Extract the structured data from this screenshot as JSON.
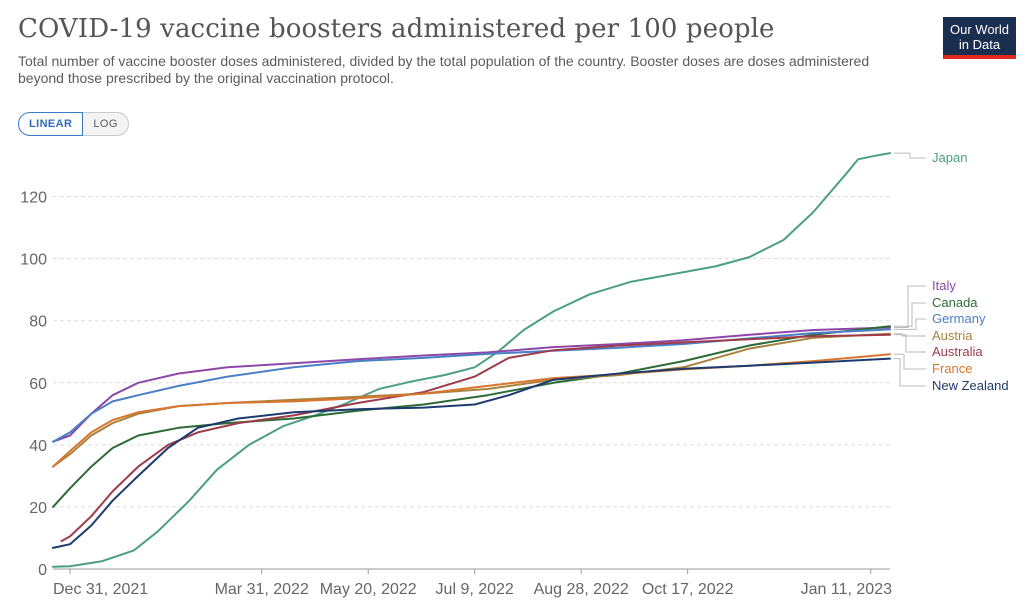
{
  "header": {
    "title": "COVID-19 vaccine boosters administered per 100 people",
    "subtitle": "Total number of vaccine booster doses administered, divided by the total population of the country. Booster doses are doses administered beyond those prescribed by the original vaccination protocol."
  },
  "logo": {
    "line1": "Our World",
    "line2": "in Data"
  },
  "scale_toggle": {
    "linear_label": "LINEAR",
    "log_label": "LOG",
    "selected": "LINEAR"
  },
  "chart_data": {
    "type": "line",
    "title": "COVID-19 vaccine boosters administered per 100 people",
    "xlabel": "",
    "ylabel": "",
    "x_range": [
      "2021-12-23",
      "2023-01-20"
    ],
    "ylim": [
      0,
      135
    ],
    "y_ticks": [
      0,
      20,
      40,
      60,
      80,
      100,
      120
    ],
    "x_ticks": [
      {
        "date": "2021-12-31",
        "label": "Dec 31, 2021"
      },
      {
        "date": "2022-03-31",
        "label": "Mar 31, 2022"
      },
      {
        "date": "2022-05-20",
        "label": "May 20, 2022"
      },
      {
        "date": "2022-07-09",
        "label": "Jul 9, 2022"
      },
      {
        "date": "2022-08-28",
        "label": "Aug 28, 2022"
      },
      {
        "date": "2022-10-17",
        "label": "Oct 17, 2022"
      },
      {
        "date": "2023-01-11",
        "label": "Jan 11, 2023"
      }
    ],
    "grid": "horizontal",
    "legend": "right",
    "series": [
      {
        "name": "Japan",
        "color": "#4c9f7f",
        "points": [
          [
            "2021-12-23",
            0.7
          ],
          [
            "2021-12-31",
            0.9
          ],
          [
            "2022-01-15",
            2.5
          ],
          [
            "2022-01-30",
            6
          ],
          [
            "2022-02-10",
            12
          ],
          [
            "2022-02-25",
            22
          ],
          [
            "2022-03-10",
            32
          ],
          [
            "2022-03-25",
            40
          ],
          [
            "2022-04-10",
            46
          ],
          [
            "2022-04-25",
            49.5
          ],
          [
            "2022-05-10",
            53.5
          ],
          [
            "2022-05-25",
            58
          ],
          [
            "2022-06-10",
            60.5
          ],
          [
            "2022-06-25",
            62.5
          ],
          [
            "2022-07-09",
            65
          ],
          [
            "2022-07-20",
            70
          ],
          [
            "2022-08-01",
            77
          ],
          [
            "2022-08-15",
            83
          ],
          [
            "2022-09-01",
            88.5
          ],
          [
            "2022-09-20",
            92.5
          ],
          [
            "2022-10-10",
            95
          ],
          [
            "2022-10-30",
            97.5
          ],
          [
            "2022-11-15",
            100.5
          ],
          [
            "2022-12-01",
            106
          ],
          [
            "2022-12-15",
            115
          ],
          [
            "2022-12-30",
            127
          ],
          [
            "2023-01-05",
            132
          ],
          [
            "2023-01-12",
            133
          ],
          [
            "2023-01-20",
            134
          ]
        ]
      },
      {
        "name": "Italy",
        "color": "#8e48a8",
        "points": [
          [
            "2021-12-23",
            41
          ],
          [
            "2021-12-31",
            43
          ],
          [
            "2022-01-10",
            50
          ],
          [
            "2022-01-20",
            56
          ],
          [
            "2022-02-01",
            60
          ],
          [
            "2022-02-20",
            63
          ],
          [
            "2022-03-15",
            65
          ],
          [
            "2022-04-15",
            66.3
          ],
          [
            "2022-05-15",
            67.6
          ],
          [
            "2022-06-15",
            68.8
          ],
          [
            "2022-07-15",
            69.8
          ],
          [
            "2022-08-15",
            71.5
          ],
          [
            "2022-09-15",
            72.5
          ],
          [
            "2022-10-15",
            73.7
          ],
          [
            "2022-11-15",
            75.5
          ],
          [
            "2022-12-15",
            77
          ],
          [
            "2023-01-20",
            77.8
          ]
        ]
      },
      {
        "name": "Canada",
        "color": "#2e6a36",
        "points": [
          [
            "2021-12-23",
            20
          ],
          [
            "2021-12-31",
            26
          ],
          [
            "2022-01-10",
            33
          ],
          [
            "2022-01-20",
            39
          ],
          [
            "2022-02-01",
            43
          ],
          [
            "2022-02-20",
            45.5
          ],
          [
            "2022-03-15",
            47
          ],
          [
            "2022-04-15",
            48.5
          ],
          [
            "2022-05-15",
            51
          ],
          [
            "2022-06-15",
            53
          ],
          [
            "2022-07-15",
            56
          ],
          [
            "2022-08-15",
            60
          ],
          [
            "2022-09-15",
            63
          ],
          [
            "2022-10-15",
            67
          ],
          [
            "2022-11-15",
            72
          ],
          [
            "2022-12-15",
            75.5
          ],
          [
            "2023-01-20",
            78.2
          ]
        ]
      },
      {
        "name": "Germany",
        "color": "#4b7fc6",
        "points": [
          [
            "2021-12-23",
            41
          ],
          [
            "2021-12-31",
            44
          ],
          [
            "2022-01-10",
            50
          ],
          [
            "2022-01-20",
            54
          ],
          [
            "2022-02-01",
            56
          ],
          [
            "2022-02-20",
            59
          ],
          [
            "2022-03-15",
            62
          ],
          [
            "2022-04-15",
            65
          ],
          [
            "2022-05-15",
            67
          ],
          [
            "2022-06-15",
            68
          ],
          [
            "2022-07-15",
            69.3
          ],
          [
            "2022-08-15",
            70.3
          ],
          [
            "2022-09-15",
            71.3
          ],
          [
            "2022-10-15",
            72.5
          ],
          [
            "2022-11-15",
            74.3
          ],
          [
            "2022-12-15",
            76
          ],
          [
            "2023-01-20",
            77.2
          ]
        ]
      },
      {
        "name": "Austria",
        "color": "#a8833f",
        "points": [
          [
            "2021-12-23",
            33
          ],
          [
            "2021-12-31",
            37
          ],
          [
            "2022-01-10",
            43
          ],
          [
            "2022-01-20",
            47
          ],
          [
            "2022-02-01",
            50
          ],
          [
            "2022-02-20",
            52.5
          ],
          [
            "2022-03-15",
            53.5
          ],
          [
            "2022-04-15",
            54.5
          ],
          [
            "2022-05-15",
            55.5
          ],
          [
            "2022-06-15",
            56.5
          ],
          [
            "2022-07-15",
            58
          ],
          [
            "2022-08-15",
            61
          ],
          [
            "2022-09-15",
            62.5
          ],
          [
            "2022-10-15",
            65
          ],
          [
            "2022-11-15",
            71
          ],
          [
            "2022-12-15",
            74.5
          ],
          [
            "2023-01-20",
            75.8
          ]
        ]
      },
      {
        "name": "Australia",
        "color": "#9e3c4b",
        "points": [
          [
            "2021-12-27",
            9
          ],
          [
            "2021-12-31",
            10.5
          ],
          [
            "2022-01-10",
            17
          ],
          [
            "2022-01-20",
            25
          ],
          [
            "2022-02-01",
            33
          ],
          [
            "2022-02-15",
            40
          ],
          [
            "2022-03-01",
            44
          ],
          [
            "2022-03-20",
            47
          ],
          [
            "2022-04-15",
            49.5
          ],
          [
            "2022-05-15",
            53.5
          ],
          [
            "2022-06-15",
            57
          ],
          [
            "2022-07-09",
            62
          ],
          [
            "2022-07-25",
            68
          ],
          [
            "2022-08-15",
            70.5
          ],
          [
            "2022-09-15",
            72
          ],
          [
            "2022-10-15",
            73
          ],
          [
            "2022-11-15",
            74
          ],
          [
            "2022-12-15",
            75
          ],
          [
            "2023-01-20",
            75.5
          ]
        ]
      },
      {
        "name": "France",
        "color": "#d8752e",
        "points": [
          [
            "2021-12-23",
            33
          ],
          [
            "2021-12-31",
            38
          ],
          [
            "2022-01-10",
            44
          ],
          [
            "2022-01-20",
            48
          ],
          [
            "2022-02-01",
            50.5
          ],
          [
            "2022-02-20",
            52.5
          ],
          [
            "2022-03-15",
            53.5
          ],
          [
            "2022-04-15",
            54
          ],
          [
            "2022-05-15",
            55
          ],
          [
            "2022-06-15",
            56.5
          ],
          [
            "2022-07-15",
            59
          ],
          [
            "2022-08-15",
            61.5
          ],
          [
            "2022-09-15",
            62.8
          ],
          [
            "2022-10-15",
            64.3
          ],
          [
            "2022-11-15",
            65.5
          ],
          [
            "2022-12-15",
            67
          ],
          [
            "2023-01-20",
            69.2
          ]
        ]
      },
      {
        "name": "New Zealand",
        "color": "#1e3a6e",
        "points": [
          [
            "2021-12-23",
            6.8
          ],
          [
            "2021-12-31",
            8
          ],
          [
            "2022-01-10",
            14
          ],
          [
            "2022-01-20",
            22
          ],
          [
            "2022-02-01",
            30
          ],
          [
            "2022-02-15",
            39
          ],
          [
            "2022-03-01",
            45.5
          ],
          [
            "2022-03-20",
            48.5
          ],
          [
            "2022-04-15",
            50.5
          ],
          [
            "2022-05-15",
            51.5
          ],
          [
            "2022-06-15",
            52
          ],
          [
            "2022-07-09",
            53
          ],
          [
            "2022-07-25",
            56
          ],
          [
            "2022-08-15",
            61
          ],
          [
            "2022-09-15",
            63
          ],
          [
            "2022-10-15",
            64.5
          ],
          [
            "2022-11-15",
            65.5
          ],
          [
            "2022-12-15",
            66.5
          ],
          [
            "2023-01-20",
            67.8
          ]
        ]
      }
    ]
  }
}
